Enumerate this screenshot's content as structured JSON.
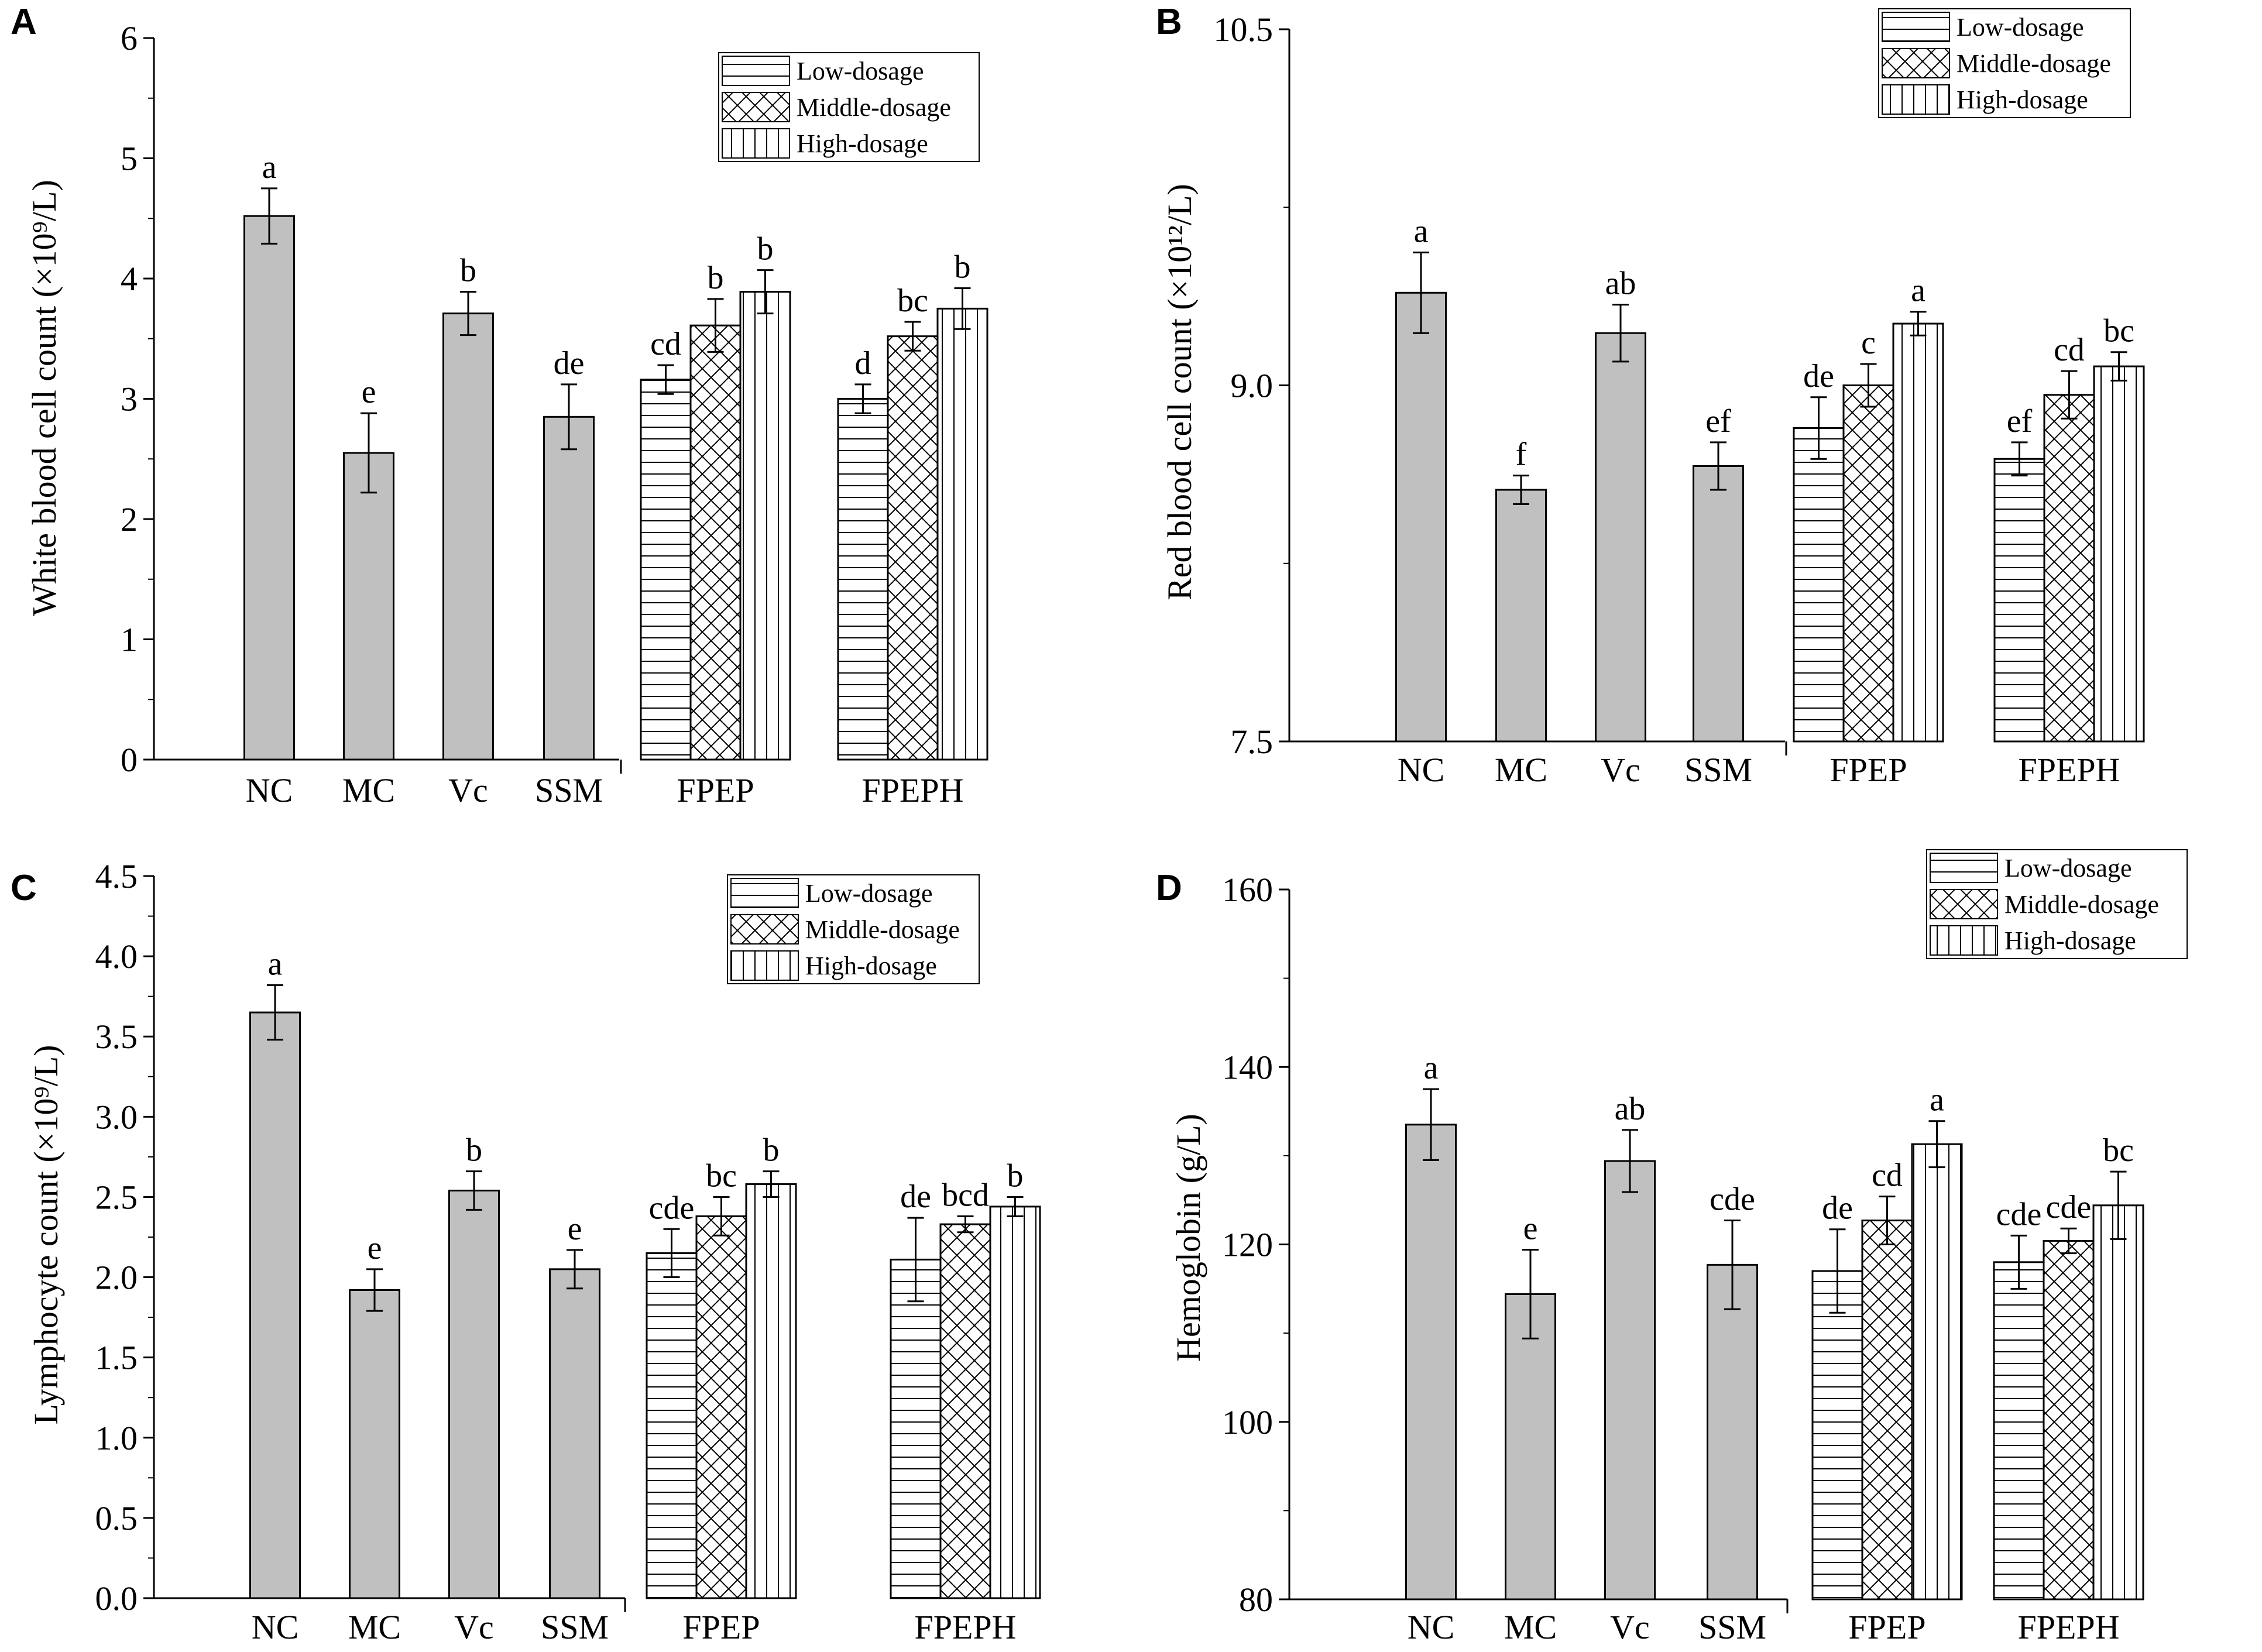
{
  "legend": {
    "low": "Low-dosage",
    "middle": "Middle-dosage",
    "high": "High-dosage"
  },
  "colors": {
    "bar_fill": "#c0c0c0",
    "stroke": "#000000",
    "background": "#ffffff"
  },
  "chart_data": [
    {
      "panel": "A",
      "type": "bar",
      "ylabel": "White blood cell count (×10⁹/L)",
      "ylim": [
        0,
        6
      ],
      "yticks": [
        "0",
        "1",
        "2",
        "3",
        "4",
        "5",
        "6"
      ],
      "categories": [
        "NC",
        "MC",
        "Vc",
        "SSM",
        "FPEP",
        "FPEPH"
      ],
      "controls": [
        {
          "name": "NC",
          "value": 4.52,
          "err": 0.23,
          "sig": "a"
        },
        {
          "name": "MC",
          "value": 2.55,
          "err": 0.33,
          "sig": "e"
        },
        {
          "name": "Vc",
          "value": 3.71,
          "err": 0.18,
          "sig": "b"
        },
        {
          "name": "SSM",
          "value": 2.85,
          "err": 0.27,
          "sig": "de"
        }
      ],
      "groups": [
        {
          "name": "FPEP",
          "bars": [
            {
              "dose": "low",
              "value": 3.16,
              "err": 0.12,
              "sig": "cd"
            },
            {
              "dose": "middle",
              "value": 3.61,
              "err": 0.22,
              "sig": "b"
            },
            {
              "dose": "high",
              "value": 3.89,
              "err": 0.18,
              "sig": "b"
            }
          ]
        },
        {
          "name": "FPEPH",
          "bars": [
            {
              "dose": "low",
              "value": 3.0,
              "err": 0.12,
              "sig": "d"
            },
            {
              "dose": "middle",
              "value": 3.52,
              "err": 0.12,
              "sig": "bc"
            },
            {
              "dose": "high",
              "value": 3.75,
              "err": 0.17,
              "sig": "b"
            }
          ]
        }
      ]
    },
    {
      "panel": "B",
      "type": "bar",
      "ylabel": "Red blood cell count (×10¹²/L)",
      "ylim": [
        7.5,
        10.5
      ],
      "yticks": [
        "7.5",
        "9.0",
        "10.5"
      ],
      "categories": [
        "NC",
        "MC",
        "Vc",
        "SSM",
        "FPEP",
        "FPEPH"
      ],
      "controls": [
        {
          "name": "NC",
          "value": 9.39,
          "err": 0.17,
          "sig": "a"
        },
        {
          "name": "MC",
          "value": 8.56,
          "err": 0.06,
          "sig": "f"
        },
        {
          "name": "Vc",
          "value": 9.22,
          "err": 0.12,
          "sig": "ab"
        },
        {
          "name": "SSM",
          "value": 8.66,
          "err": 0.1,
          "sig": "ef"
        }
      ],
      "groups": [
        {
          "name": "FPEP",
          "bars": [
            {
              "dose": "low",
              "value": 8.82,
              "err": 0.13,
              "sig": "de"
            },
            {
              "dose": "middle",
              "value": 9.0,
              "err": 0.09,
              "sig": "c"
            },
            {
              "dose": "high",
              "value": 9.26,
              "err": 0.05,
              "sig": "a"
            }
          ]
        },
        {
          "name": "FPEPH",
          "bars": [
            {
              "dose": "low",
              "value": 8.69,
              "err": 0.07,
              "sig": "ef"
            },
            {
              "dose": "middle",
              "value": 8.96,
              "err": 0.1,
              "sig": "cd"
            },
            {
              "dose": "high",
              "value": 9.08,
              "err": 0.06,
              "sig": "bc"
            }
          ]
        }
      ]
    },
    {
      "panel": "C",
      "type": "bar",
      "ylabel": "Lymphocyte count (×10⁹/L)",
      "ylim": [
        0,
        4.5
      ],
      "yticks": [
        "0.0",
        "0.5",
        "1.0",
        "1.5",
        "2.0",
        "2.5",
        "3.0",
        "3.5",
        "4.0",
        "4.5"
      ],
      "categories": [
        "NC",
        "MC",
        "Vc",
        "SSM",
        "FPEP",
        "FPEPH"
      ],
      "controls": [
        {
          "name": "NC",
          "value": 3.65,
          "err": 0.17,
          "sig": "a"
        },
        {
          "name": "MC",
          "value": 1.92,
          "err": 0.13,
          "sig": "e"
        },
        {
          "name": "Vc",
          "value": 2.54,
          "err": 0.12,
          "sig": "b"
        },
        {
          "name": "SSM",
          "value": 2.05,
          "err": 0.12,
          "sig": "e"
        }
      ],
      "groups": [
        {
          "name": "FPEP",
          "bars": [
            {
              "dose": "low",
              "value": 2.15,
              "err": 0.15,
              "sig": "cde"
            },
            {
              "dose": "middle",
              "value": 2.38,
              "err": 0.12,
              "sig": "bc"
            },
            {
              "dose": "high",
              "value": 2.58,
              "err": 0.08,
              "sig": "b"
            }
          ]
        },
        {
          "name": "FPEPH",
          "bars": [
            {
              "dose": "low",
              "value": 2.11,
              "err": 0.26,
              "sig": "de"
            },
            {
              "dose": "middle",
              "value": 2.33,
              "err": 0.05,
              "sig": "bcd"
            },
            {
              "dose": "high",
              "value": 2.44,
              "err": 0.06,
              "sig": "b"
            }
          ]
        }
      ]
    },
    {
      "panel": "D",
      "type": "bar",
      "ylabel": "Hemoglobin (g/L)",
      "ylim": [
        80,
        160
      ],
      "yticks": [
        "80",
        "100",
        "120",
        "140",
        "160"
      ],
      "categories": [
        "NC",
        "MC",
        "Vc",
        "SSM",
        "FPEP",
        "FPEPH"
      ],
      "controls": [
        {
          "name": "NC",
          "value": 133.5,
          "err": 4.0,
          "sig": "a"
        },
        {
          "name": "MC",
          "value": 114.4,
          "err": 5.0,
          "sig": "e"
        },
        {
          "name": "Vc",
          "value": 129.4,
          "err": 3.5,
          "sig": "ab"
        },
        {
          "name": "SSM",
          "value": 117.7,
          "err": 5.0,
          "sig": "cde"
        }
      ],
      "groups": [
        {
          "name": "FPEP",
          "bars": [
            {
              "dose": "low",
              "value": 117.0,
              "err": 4.7,
              "sig": "de"
            },
            {
              "dose": "middle",
              "value": 122.7,
              "err": 2.7,
              "sig": "cd"
            },
            {
              "dose": "high",
              "value": 131.3,
              "err": 2.6,
              "sig": "a"
            }
          ]
        },
        {
          "name": "FPEPH",
          "bars": [
            {
              "dose": "low",
              "value": 118.0,
              "err": 3.0,
              "sig": "cde"
            },
            {
              "dose": "middle",
              "value": 120.4,
              "err": 1.4,
              "sig": "cde"
            },
            {
              "dose": "high",
              "value": 124.4,
              "err": 3.8,
              "sig": "bc"
            }
          ]
        }
      ]
    }
  ]
}
